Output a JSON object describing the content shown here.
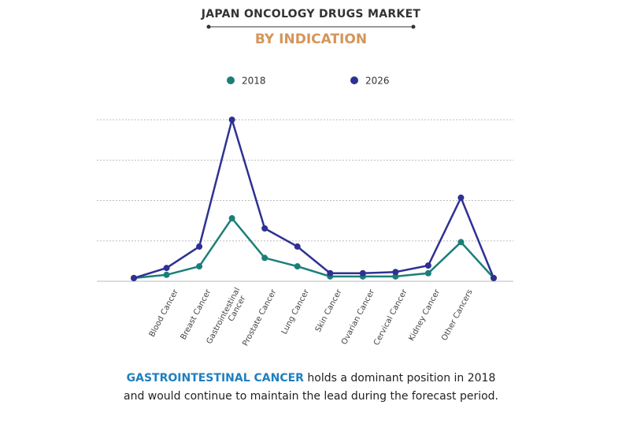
{
  "title": "JAPAN ONCOLOGY DRUGS MARKET",
  "chart_data": {
    "type": "line",
    "subtitle": "BY INDICATION",
    "categories": [
      null,
      "Blood Cancer",
      "Breast Cancer",
      "Gastrointestinal Cancer",
      "Prostate Cancer",
      "Lung Cancer",
      "Skin Cancer",
      "Ovarian Cancer",
      "Cervical Cancer",
      "Kidney Cancer",
      "Other Cancers",
      null
    ],
    "series": [
      {
        "name": "2018",
        "color": "#1b7f78",
        "values": [
          0.08,
          0.16,
          0.37,
          1.56,
          0.58,
          0.37,
          0.12,
          0.12,
          0.12,
          0.2,
          0.97,
          0.08
        ]
      },
      {
        "name": "2026",
        "color": "#2e3192",
        "values": [
          0.08,
          0.33,
          0.86,
          4.0,
          1.31,
          0.86,
          0.2,
          0.2,
          0.23,
          0.39,
          2.07,
          0.08
        ]
      }
    ],
    "ylim": [
      0,
      4
    ],
    "yticks": [
      0,
      1,
      2,
      3,
      4
    ],
    "grid": true
  },
  "caption": {
    "highlight": "GASTROINTESTINAL CANCER",
    "line1": "holds a dominant position in 2018",
    "line2": "and would continue to maintain the lead during the forecast period."
  }
}
